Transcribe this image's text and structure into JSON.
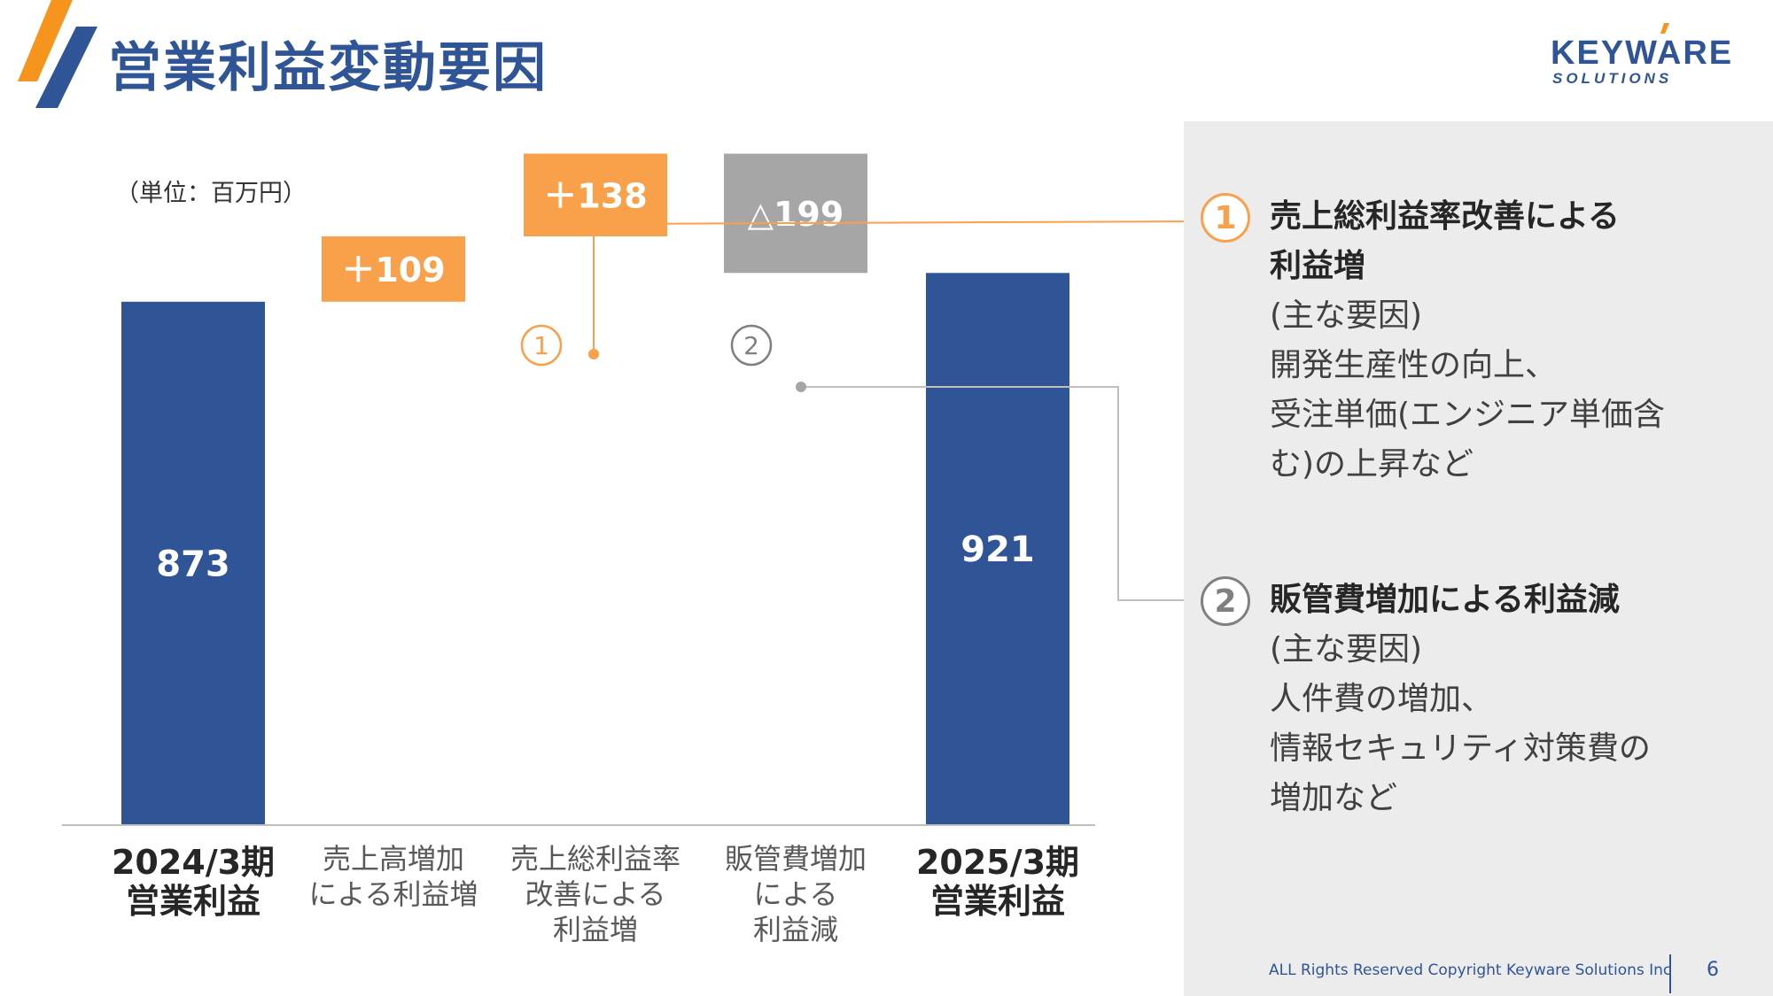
{
  "title": "営業利益変動要因",
  "logo": {
    "main": "KEYWARE",
    "sub": "SOLUTIONS"
  },
  "unit_label": "（単位：百万円）",
  "chart_data": {
    "type": "bar",
    "subtype": "waterfall",
    "categories": [
      "2024/3期\n営業利益",
      "売上高増加\nによる利益増",
      "売上総利益率\n改善による\n利益増",
      "販管費増加\nによる\n利益減",
      "2025/3期\n営業利益"
    ],
    "values": [
      873,
      109,
      138,
      -199,
      921
    ],
    "data_labels": [
      "873",
      "＋109",
      "＋138",
      "△199",
      "921"
    ],
    "bar_kinds": [
      "total",
      "increase",
      "increase",
      "decrease",
      "total"
    ],
    "callouts": [
      "1",
      "2"
    ],
    "ylim": [
      0,
      1140
    ],
    "colors": {
      "total": "#2f5597",
      "increase": "#f8a04a",
      "decrease": "#a6a6a6"
    }
  },
  "factors": [
    {
      "number": "1",
      "heading": [
        "売上総利益率改善による",
        "利益増"
      ],
      "body": [
        "(主な要因)",
        "開発生産性の向上、",
        "受注単価(エンジニア単価含",
        "む)の上昇など"
      ],
      "color": "#f8a04a"
    },
    {
      "number": "2",
      "heading": [
        "販管費増加による利益減"
      ],
      "body": [
        "(主な要因)",
        "人件費の増加、",
        "情報セキュリティ対策費の",
        "増加など"
      ],
      "color": "#808080"
    }
  ],
  "footer": {
    "copyright": "ALL Rights Reserved Copyright Keyware Solutions Inc",
    "page": "6"
  }
}
